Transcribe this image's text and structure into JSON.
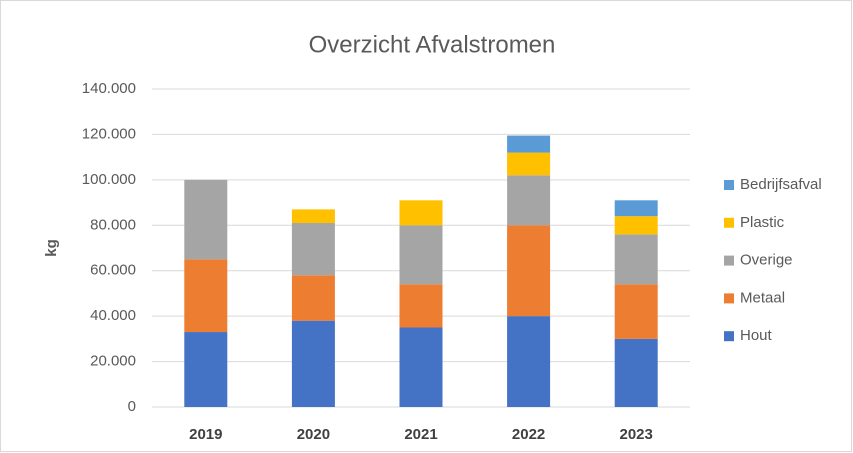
{
  "chart_data": {
    "type": "stacked_bar",
    "title": "Overzicht Afvalstromen",
    "y_label": "kg",
    "categories": [
      "2019",
      "2020",
      "2021",
      "2022",
      "2023"
    ],
    "series": [
      {
        "name": "Hout",
        "color": "#4472c4",
        "values": [
          33000,
          38000,
          35000,
          40000,
          30000
        ]
      },
      {
        "name": "Metaal",
        "color": "#ed7d31",
        "values": [
          32000,
          20000,
          19000,
          40000,
          24000
        ]
      },
      {
        "name": "Overige",
        "color": "#a5a5a5",
        "values": [
          35000,
          23000,
          26000,
          22000,
          22000
        ]
      },
      {
        "name": "Plastic",
        "color": "#ffc000",
        "values": [
          0,
          6000,
          11000,
          10000,
          8000
        ]
      },
      {
        "name": "Bedrijfsafval",
        "color": "#5b9bd5",
        "values": [
          0,
          0,
          0,
          7500,
          7000
        ]
      }
    ],
    "ylim": [
      0,
      140000
    ],
    "yticks": [
      0,
      {
        "value": 20000,
        "label": "20.000"
      },
      {
        "value": 40000,
        "label": "40.000"
      },
      {
        "value": 60000,
        "label": "60.000"
      },
      {
        "value": 80000,
        "label": "80.000"
      },
      {
        "value": 100000,
        "label": "100.000"
      },
      {
        "value": 120000,
        "label": "120.000"
      },
      {
        "value": 140000,
        "label": "140.000"
      }
    ],
    "grid": true,
    "legend": "right"
  }
}
